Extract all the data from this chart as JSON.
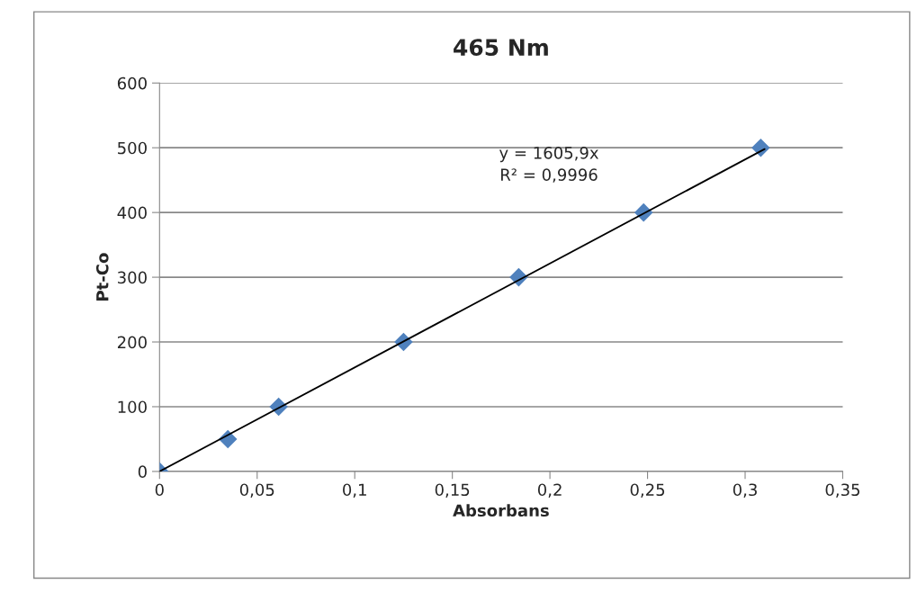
{
  "chart_data": {
    "type": "scatter",
    "title": "465 Nm",
    "xlabel": "Absorbans",
    "ylabel": "Pt-Co",
    "series": [
      {
        "color": "#4f81bd",
        "marker": "diamond",
        "x": [
          0,
          0.035,
          0.061,
          0.125,
          0.184,
          0.248,
          0.308
        ],
        "values": [
          0,
          50,
          100,
          200,
          300,
          400,
          500
        ]
      },
      {
        "type": "line",
        "color": "#000000",
        "marker": "none",
        "line_style": "solid",
        "x": [
          0,
          0.31
        ],
        "values": [
          0,
          498
        ]
      }
    ],
    "annotations": [
      "y = 1605,9x\nR² = 0,9996"
    ],
    "xlim": [
      0,
      0.35
    ],
    "ylim": [
      0,
      600
    ],
    "xticks": [
      0,
      {
        "value": 0.05,
        "label": "0,05"
      },
      {
        "value": 0.1,
        "label": "0,1"
      },
      {
        "value": 0.15,
        "label": "0,15"
      },
      {
        "value": 0.2,
        "label": "0,2"
      },
      {
        "value": 0.25,
        "label": "0,25"
      },
      {
        "value": 0.3,
        "label": "0,3"
      },
      {
        "value": 0.35,
        "label": "0,35"
      }
    ],
    "yticks": [
      0,
      100,
      200,
      300,
      400,
      500,
      600
    ],
    "grid": "y",
    "legend": false
  }
}
